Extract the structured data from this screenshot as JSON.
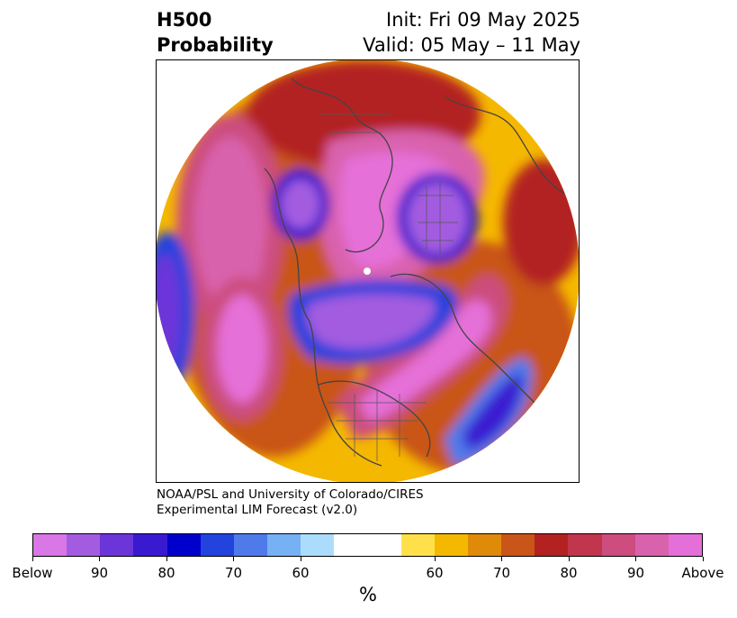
{
  "title": {
    "line1_left": "H500",
    "line2_left": "Probability",
    "line1_right": "Init: Fri 09 May 2025",
    "line2_right": "Valid: 05 May – 11 May"
  },
  "credit": {
    "line1": "NOAA/PSL and University of Colorado/CIRES",
    "line2": "Experimental LIM Forecast (v2.0)"
  },
  "colorbar": {
    "unit": "%",
    "colors": [
      "#d977e6",
      "#a35ce0",
      "#6c35d9",
      "#3a1ad1",
      "#0000cc",
      "#2243dd",
      "#4f7aea",
      "#76b1f3",
      "#acdcfc",
      "#ffffff",
      "#ffe04a",
      "#f5b800",
      "#e08a0a",
      "#c95518",
      "#b32121",
      "#c1364d",
      "#cc4d7e",
      "#d962ad",
      "#e56fd8"
    ],
    "tick_labels": [
      "Below",
      "90",
      "80",
      "70",
      "60",
      "60",
      "70",
      "80",
      "90",
      "Above"
    ]
  },
  "map": {
    "projection": "north-polar-stereographic",
    "field": "500-hPa height anomaly probability",
    "features": [
      "coastlines",
      "country-borders",
      "state-borders"
    ]
  }
}
